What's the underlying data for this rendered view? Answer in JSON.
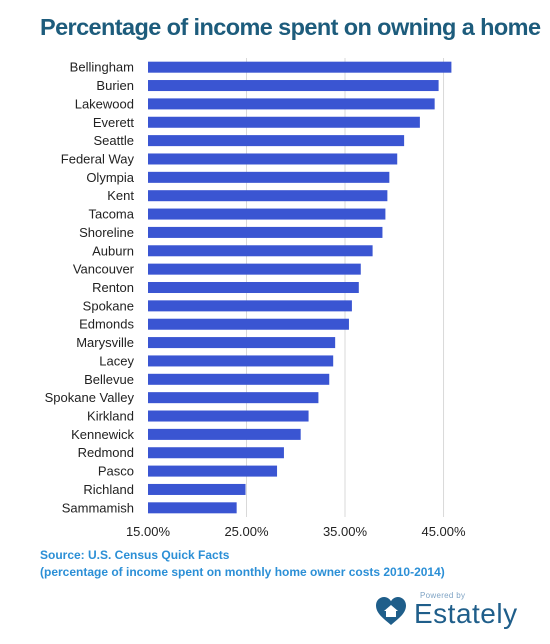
{
  "title": "Percentage of income spent on owning a home",
  "source": {
    "line1": "Source:  U.S. Census Quick Facts",
    "line2": "(percentage of income spent on monthly home owner costs 2010-2014)"
  },
  "branding": {
    "powered_by": "Powered by",
    "name": "Estately",
    "logo_icon": "heart-house-icon"
  },
  "colors": {
    "bar": "#3a55d2",
    "title": "#1d5c7c",
    "source": "#2b8fd6",
    "grid": "#d9d9d9"
  },
  "chart_data": {
    "type": "bar",
    "orientation": "horizontal",
    "title": "Percentage of income spent on owning a home",
    "categories": [
      "Bellingham",
      "Burien",
      "Lakewood",
      "Everett",
      "Seattle",
      "Federal Way",
      "Olympia",
      "Kent",
      "Tacoma",
      "Shoreline",
      "Auburn",
      "Vancouver",
      "Renton",
      "Spokane",
      "Edmonds",
      "Marysville",
      "Lacey",
      "Bellevue",
      "Spokane Valley",
      "Kirkland",
      "Kennewick",
      "Redmond",
      "Pasco",
      "Richland",
      "Sammamish"
    ],
    "values": [
      45.8,
      44.5,
      44.1,
      42.6,
      41.0,
      40.3,
      39.5,
      39.3,
      39.1,
      38.8,
      37.8,
      36.6,
      36.4,
      35.7,
      35.4,
      34.0,
      33.8,
      33.4,
      32.3,
      31.3,
      30.5,
      28.8,
      28.1,
      24.9,
      24.0
    ],
    "xlim": [
      15,
      48.5
    ],
    "ticks": [
      15,
      25,
      35,
      45
    ],
    "tick_labels": [
      "15.00%",
      "25.00%",
      "35.00%",
      "45.00%"
    ],
    "grid": true,
    "legend": "none"
  }
}
